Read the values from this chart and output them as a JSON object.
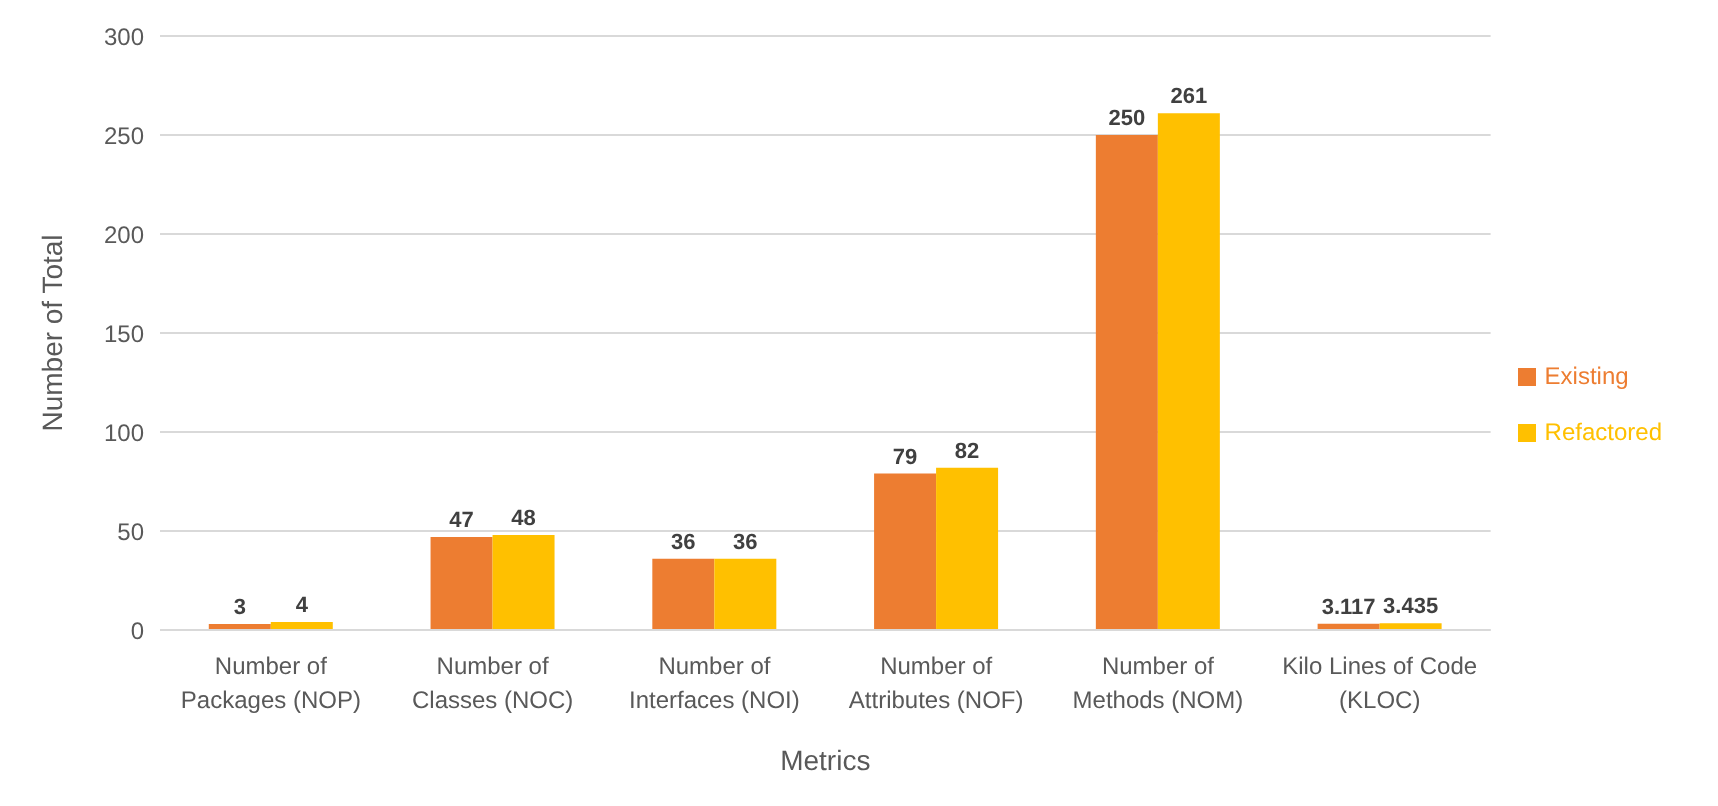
{
  "chart_data": {
    "type": "bar",
    "xlabel": "Metrics",
    "ylabel": "Number of Total",
    "categories": [
      "Number of Packages (NOP)",
      "Number of Classes (NOC)",
      "Number of Interfaces (NOI)",
      "Number of Attributes (NOF)",
      "Number of Methods (NOM)",
      "Kilo Lines of Code (KLOC)"
    ],
    "series": [
      {
        "name": "Existing",
        "color": "#ed7d31",
        "values": [
          3,
          47,
          36,
          79,
          250,
          3.117
        ]
      },
      {
        "name": "Refactored",
        "color": "#ffc000",
        "values": [
          4,
          48,
          36,
          82,
          261,
          3.435
        ]
      }
    ],
    "ylim": [
      0,
      300
    ],
    "yticks": [
      0,
      50,
      100,
      150,
      200,
      250,
      300
    ],
    "grid": "y",
    "legend": "right",
    "data_labels": true
  }
}
